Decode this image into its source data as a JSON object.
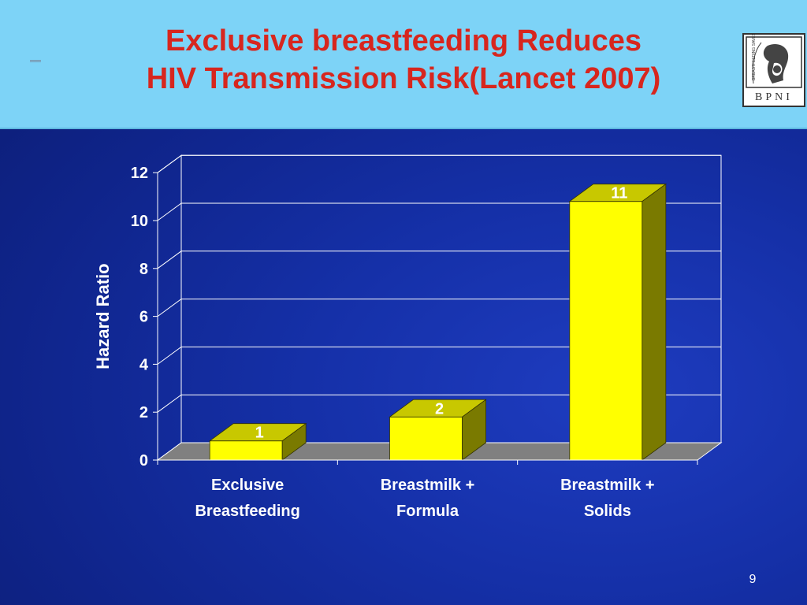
{
  "slide": {
    "title_line1": "Exclusive breastfeeding Reduces",
    "title_line2": "HIV Transmission Risk(Lancet 2007)",
    "page_number": "9",
    "logo_text": "BPNI",
    "logo_arc_text": "BREASTFEEDING SAVES LIVES"
  },
  "colors": {
    "title": "#d7261e",
    "header_bg": "#7dd3f7",
    "bar_front": "#ffff00",
    "bar_top": "#c8c800",
    "bar_side": "#7a7a00",
    "floor": "#808080",
    "text": "#ffffff"
  },
  "chart_data": {
    "type": "bar",
    "categories": [
      "Exclusive Breastfeeding",
      "Breastmilk + Formula",
      "Breastmilk + Solids"
    ],
    "category_lines": [
      [
        "Exclusive",
        "Breastfeeding"
      ],
      [
        "Breastmilk +",
        "Formula"
      ],
      [
        "Breastmilk +",
        "Solids"
      ]
    ],
    "values": [
      0.8,
      1.8,
      10.8
    ],
    "data_labels": [
      "1",
      "2",
      "11"
    ],
    "ylabel": "Hazard Ratio",
    "ylim": [
      0,
      12
    ],
    "yticks": [
      0,
      2,
      4,
      6,
      8,
      10,
      12
    ],
    "grid": true,
    "legend": "none",
    "style": "3d"
  }
}
